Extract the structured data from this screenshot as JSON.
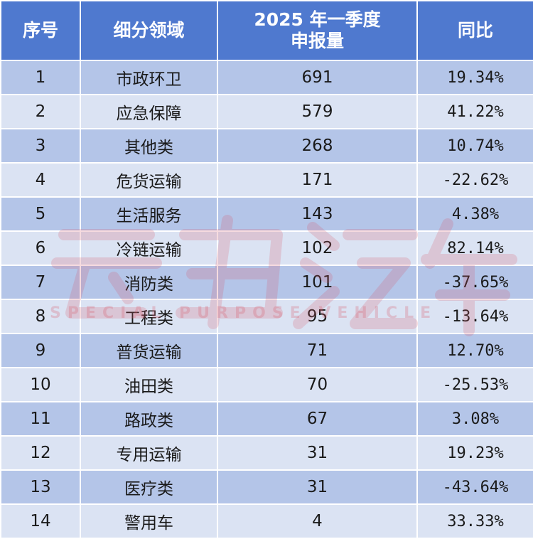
{
  "headers": {
    "index": "序号",
    "segment": "细分领域",
    "q1_line1": "2025 年一季度",
    "q1_line2": "申报量",
    "yoy": "同比"
  },
  "rows": [
    {
      "index": "1",
      "segment": "市政环卫",
      "count": "691",
      "yoy": "19.34%"
    },
    {
      "index": "2",
      "segment": "应急保障",
      "count": "579",
      "yoy": "41.22%"
    },
    {
      "index": "3",
      "segment": "其他类",
      "count": "268",
      "yoy": "10.74%"
    },
    {
      "index": "4",
      "segment": "危货运输",
      "count": "171",
      "yoy": "-22.62%"
    },
    {
      "index": "5",
      "segment": "生活服务",
      "count": "143",
      "yoy": "4.38%"
    },
    {
      "index": "6",
      "segment": "冷链运输",
      "count": "102",
      "yoy": "82.14%"
    },
    {
      "index": "7",
      "segment": "消防类",
      "count": "101",
      "yoy": "-37.65%"
    },
    {
      "index": "8",
      "segment": "工程类",
      "count": "95",
      "yoy": "-13.64%"
    },
    {
      "index": "9",
      "segment": "普货运输",
      "count": "71",
      "yoy": "12.70%"
    },
    {
      "index": "10",
      "segment": "油田类",
      "count": "70",
      "yoy": "-25.53%"
    },
    {
      "index": "11",
      "segment": "路政类",
      "count": "67",
      "yoy": "3.08%"
    },
    {
      "index": "12",
      "segment": "专用运输",
      "count": "31",
      "yoy": "19.23%"
    },
    {
      "index": "13",
      "segment": "医疗类",
      "count": "31",
      "yoy": "-43.64%"
    },
    {
      "index": "14",
      "segment": "警用车",
      "count": "4",
      "yoy": "33.33%"
    }
  ],
  "watermark": {
    "sub_text": "SPECIAL PURPOSE VEHICLE"
  },
  "colors": {
    "header_bg": "#4f79cf",
    "row_dark": "#b4c5e8",
    "row_light": "#dbe3f3",
    "watermark": "#d65c6e"
  }
}
